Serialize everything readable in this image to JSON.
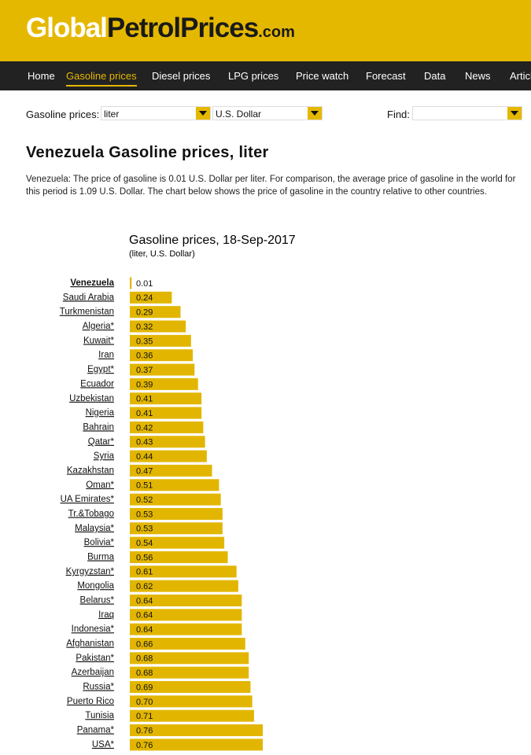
{
  "header": {
    "logo_parts": [
      "Global",
      "PetrolPrices",
      ".com"
    ]
  },
  "nav": {
    "items": [
      "Home",
      "Gasoline prices",
      "Diesel prices",
      "LPG prices",
      "Price watch",
      "Forecast",
      "Data",
      "News",
      "Articles"
    ]
  },
  "controls": {
    "label": "Gasoline prices:",
    "unit": "liter",
    "currency": "U.S. Dollar",
    "find_label": "Find:"
  },
  "heading": "Venezuela Gasoline prices, liter",
  "description": "Venezuela: The price of gasoline is 0.01 U.S. Dollar per liter. For comparison, the average price of gasoline in the world for this period is 1.09 U.S. Dollar. The chart below shows the price of gasoline in the country relative to other countries.",
  "chart_data": {
    "type": "bar",
    "title": "Gasoline prices, 18-Sep-2017",
    "subtitle": "(liter, U.S. Dollar)",
    "color": "#e2b600",
    "categories": [
      "Venezuela",
      "Saudi Arabia",
      "Turkmenistan",
      "Algeria*",
      "Kuwait*",
      "Iran",
      "Egypt*",
      "Ecuador",
      "Uzbekistan",
      "Nigeria",
      "Bahrain",
      "Qatar*",
      "Syria",
      "Kazakhstan",
      "Oman*",
      "UA Emirates*",
      "Tr.&Tobago",
      "Malaysia*",
      "Bolivia*",
      "Burma",
      "Kyrgyzstan*",
      "Mongolia",
      "Belarus*",
      "Iraq",
      "Indonesia*",
      "Afghanistan",
      "Pakistan*",
      "Azerbaijan",
      "Russia*",
      "Puerto Rico",
      "Tunisia",
      "Panama*",
      "USA*"
    ],
    "values": [
      0.01,
      0.24,
      0.29,
      0.32,
      0.35,
      0.36,
      0.37,
      0.39,
      0.41,
      0.41,
      0.42,
      0.43,
      0.44,
      0.47,
      0.51,
      0.52,
      0.53,
      0.53,
      0.54,
      0.56,
      0.61,
      0.62,
      0.64,
      0.64,
      0.64,
      0.66,
      0.68,
      0.68,
      0.69,
      0.7,
      0.71,
      0.76,
      0.76
    ],
    "value_labels": [
      "0.01",
      "0.24",
      "0.29",
      "0.32",
      "0.35",
      "0.36",
      "0.37",
      "0.39",
      "0.41",
      "0.41",
      "0.42",
      "0.43",
      "0.44",
      "0.47",
      "0.51",
      "0.52",
      "0.53",
      "0.53",
      "0.54",
      "0.56",
      "0.61",
      "0.62",
      "0.64",
      "0.64",
      "0.64",
      "0.66",
      "0.68",
      "0.68",
      "0.69",
      "0.70",
      "0.71",
      "0.76",
      "0.76"
    ]
  }
}
